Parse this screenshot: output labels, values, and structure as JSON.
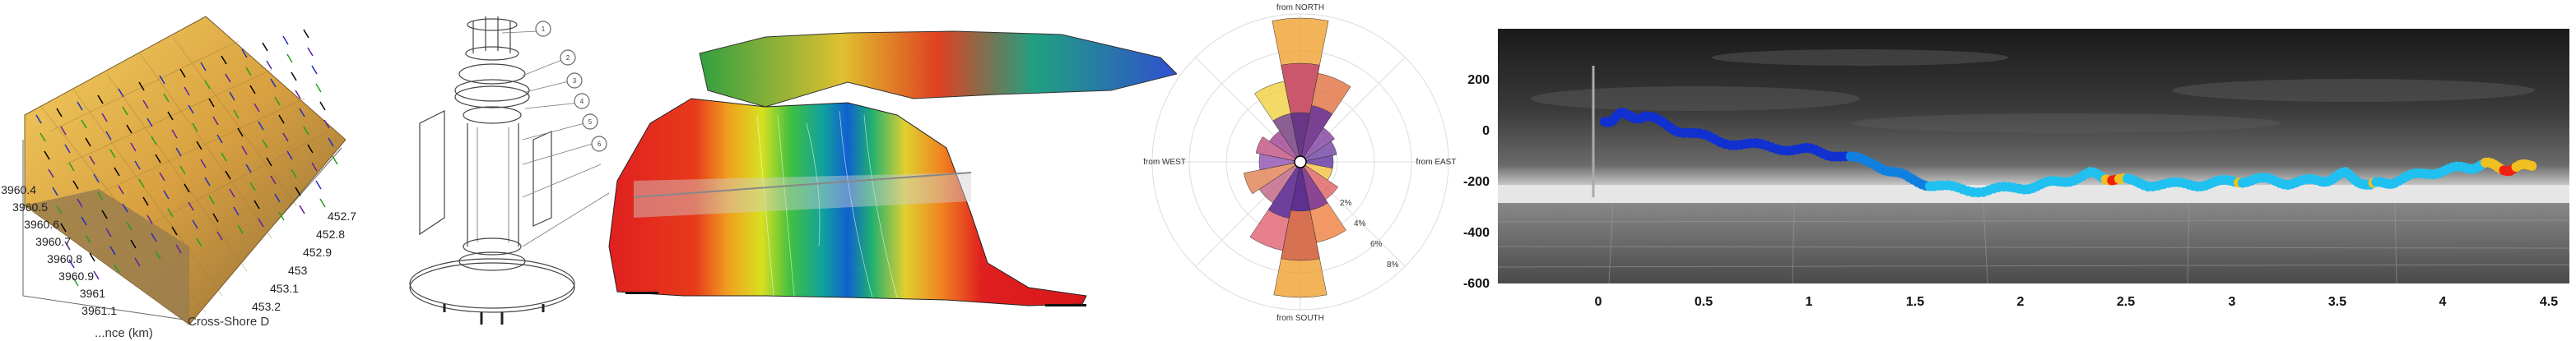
{
  "panel1": {
    "y_ticks": [
      "3960.4",
      "3960.5",
      "3960.6",
      "3960.7",
      "3960.8",
      "3960.9",
      "3961",
      "3961.1"
    ],
    "x_ticks": [
      "452.7",
      "452.8",
      "452.9",
      "453",
      "453.1",
      "453.2"
    ],
    "y_axis_label": "...nce (km)",
    "x_axis_label": "Cross-Shore D"
  },
  "panel2": {
    "callouts": [
      "1",
      "2",
      "3",
      "4",
      "5",
      "6"
    ]
  },
  "panel4": {
    "north": "from NORTH",
    "south": "from SOUTH",
    "east": "from EAST",
    "west": "from WEST",
    "ring_labels": [
      "2%",
      "4%",
      "6%",
      "8%"
    ]
  },
  "panel5": {
    "y_ticks": [
      "200",
      "0",
      "-200",
      "-400",
      "-600"
    ],
    "x_ticks": [
      "0",
      "0.5",
      "1",
      "1.5",
      "2",
      "2.5",
      "3",
      "3.5",
      "4",
      "4.5"
    ],
    "colors": {
      "low": "#1030d0",
      "mid": "#20c0f0",
      "high": "#f02010"
    }
  }
}
